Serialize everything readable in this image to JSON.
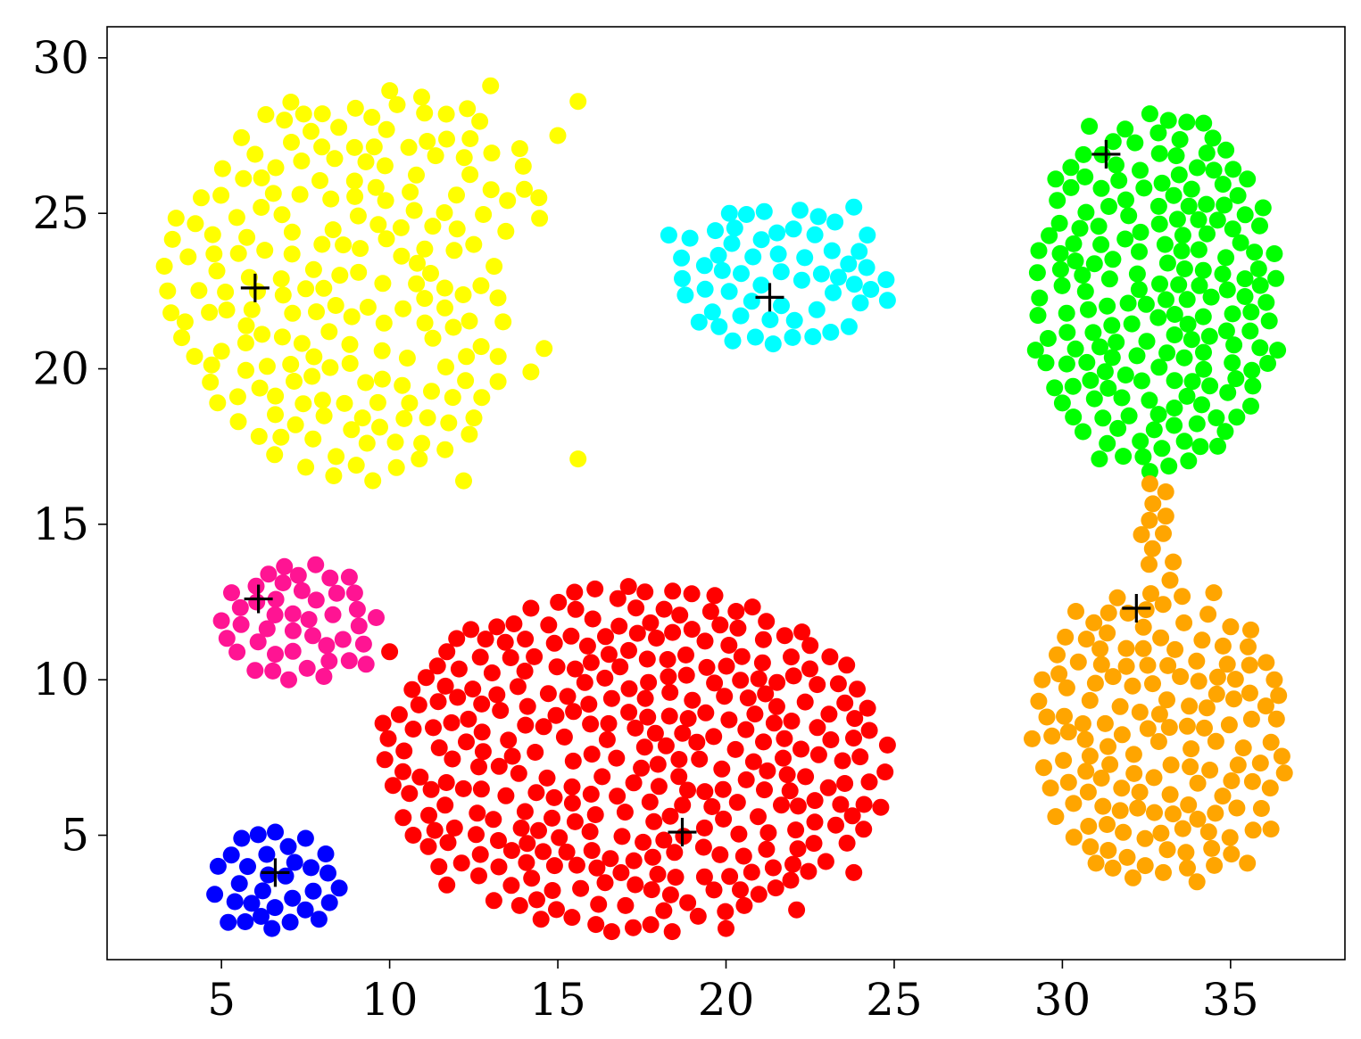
{
  "chart_data": {
    "type": "scatter",
    "xlim": [
      1.6,
      38.4
    ],
    "ylim": [
      1,
      31
    ],
    "xticks": [
      5,
      10,
      15,
      20,
      25,
      30,
      35
    ],
    "yticks": [
      5,
      10,
      15,
      20,
      25,
      30
    ],
    "grid": false,
    "legend": "none",
    "centroid_marker": "+",
    "clusters": [
      {
        "color": "#ffff00",
        "centroid": [
          6.0,
          22.6
        ],
        "shape": "crescent",
        "x_range": [
          3.3,
          15.7
        ],
        "y_range": [
          16.4,
          29.1
        ],
        "count": 210,
        "sample_points": [
          [
            3.3,
            23.3
          ],
          [
            6.0,
            26.9
          ],
          [
            8.0,
            28.2
          ],
          [
            13.0,
            29.1
          ],
          [
            15.6,
            28.6
          ],
          [
            15.0,
            27.5
          ],
          [
            12.5,
            24.0
          ],
          [
            14.2,
            19.9
          ],
          [
            15.6,
            17.1
          ],
          [
            12.2,
            16.4
          ],
          [
            7.2,
            18.2
          ],
          [
            5.5,
            18.3
          ],
          [
            4.2,
            20.4
          ],
          [
            3.5,
            21.8
          ],
          [
            4.4,
            25.5
          ]
        ]
      },
      {
        "color": "#00ffff",
        "centroid": [
          21.3,
          22.3
        ],
        "shape": "ellipse",
        "x_range": [
          18.3,
          24.8
        ],
        "y_range": [
          20.8,
          25.2
        ],
        "count": 60,
        "sample_points": [
          [
            18.3,
            24.3
          ],
          [
            18.7,
            22.9
          ],
          [
            19.2,
            21.5
          ],
          [
            20.1,
            25.0
          ],
          [
            20.2,
            20.9
          ],
          [
            21.4,
            20.8
          ],
          [
            22.2,
            25.1
          ],
          [
            23.8,
            25.2
          ],
          [
            24.8,
            22.2
          ],
          [
            24.2,
            24.3
          ],
          [
            22.7,
            21.9
          ],
          [
            20.8,
            23.6
          ]
        ]
      },
      {
        "color": "#00ff00",
        "centroid": [
          31.3,
          26.9
        ],
        "shape": "ellipse",
        "x_range": [
          29.2,
          36.4
        ],
        "y_range": [
          16.7,
          28.2
        ],
        "count": 200,
        "sample_points": [
          [
            29.2,
            20.6
          ],
          [
            29.3,
            23.8
          ],
          [
            29.8,
            26.1
          ],
          [
            30.8,
            27.8
          ],
          [
            32.6,
            28.2
          ],
          [
            34.2,
            27.9
          ],
          [
            35.5,
            26.1
          ],
          [
            36.3,
            23.7
          ],
          [
            36.4,
            20.6
          ],
          [
            35.6,
            18.8
          ],
          [
            34.1,
            17.5
          ],
          [
            32.6,
            16.7
          ],
          [
            31.1,
            17.1
          ],
          [
            30.0,
            18.9
          ]
        ]
      },
      {
        "color": "#ffa500",
        "centroid": [
          32.2,
          12.3
        ],
        "shape": "ellipse-with-bridge",
        "x_range": [
          29.1,
          36.6
        ],
        "y_range": [
          3.5,
          16.3
        ],
        "count": 160,
        "sample_points": [
          [
            32.6,
            16.3
          ],
          [
            33.0,
            14.7
          ],
          [
            33.2,
            13.2
          ],
          [
            30.4,
            12.2
          ],
          [
            29.4,
            10.0
          ],
          [
            29.1,
            8.1
          ],
          [
            29.8,
            5.6
          ],
          [
            31.0,
            4.1
          ],
          [
            33.0,
            3.8
          ],
          [
            34.0,
            3.5
          ],
          [
            35.5,
            4.1
          ],
          [
            36.2,
            5.2
          ],
          [
            36.6,
            7.0
          ],
          [
            36.3,
            10.0
          ],
          [
            35.6,
            11.6
          ],
          [
            34.5,
            12.8
          ]
        ]
      },
      {
        "color": "#ff1493",
        "centroid": [
          6.1,
          12.6
        ],
        "shape": "ellipse",
        "x_range": [
          5.0,
          9.6
        ],
        "y_range": [
          10.0,
          13.7
        ],
        "count": 45,
        "sample_points": [
          [
            5.0,
            11.9
          ],
          [
            5.3,
            12.8
          ],
          [
            6.4,
            13.4
          ],
          [
            7.8,
            13.7
          ],
          [
            8.8,
            13.3
          ],
          [
            9.6,
            12.0
          ],
          [
            9.3,
            10.5
          ],
          [
            8.2,
            10.6
          ],
          [
            7.0,
            10.0
          ],
          [
            6.0,
            10.3
          ]
        ]
      },
      {
        "color": "#ff0000",
        "centroid": [
          18.7,
          5.1
        ],
        "shape": "ellipse",
        "x_range": [
          9.8,
          24.8
        ],
        "y_range": [
          1.9,
          13.0
        ],
        "count": 330,
        "sample_points": [
          [
            9.8,
            8.6
          ],
          [
            10.0,
            10.9
          ],
          [
            10.1,
            6.6
          ],
          [
            10.7,
            5.0
          ],
          [
            11.7,
            3.4
          ],
          [
            13.1,
            2.9
          ],
          [
            14.5,
            2.3
          ],
          [
            16.6,
            1.9
          ],
          [
            18.4,
            1.9
          ],
          [
            20.0,
            2.0
          ],
          [
            22.1,
            2.6
          ],
          [
            23.8,
            3.8
          ],
          [
            24.6,
            5.9
          ],
          [
            24.8,
            7.9
          ],
          [
            23.9,
            9.7
          ],
          [
            22.5,
            11.1
          ],
          [
            20.3,
            12.2
          ],
          [
            17.1,
            13.0
          ],
          [
            14.2,
            12.3
          ],
          [
            11.7,
            10.9
          ]
        ]
      },
      {
        "color": "#0000ff",
        "centroid": [
          6.6,
          3.8
        ],
        "shape": "ellipse",
        "x_range": [
          4.8,
          8.5
        ],
        "y_range": [
          2.0,
          5.1
        ],
        "count": 40,
        "sample_points": [
          [
            4.8,
            3.1
          ],
          [
            4.9,
            4.0
          ],
          [
            5.6,
            4.9
          ],
          [
            6.6,
            5.1
          ],
          [
            7.5,
            4.9
          ],
          [
            8.1,
            4.4
          ],
          [
            8.5,
            3.3
          ],
          [
            7.9,
            2.3
          ],
          [
            6.5,
            2.0
          ],
          [
            5.2,
            2.2
          ]
        ]
      }
    ]
  }
}
